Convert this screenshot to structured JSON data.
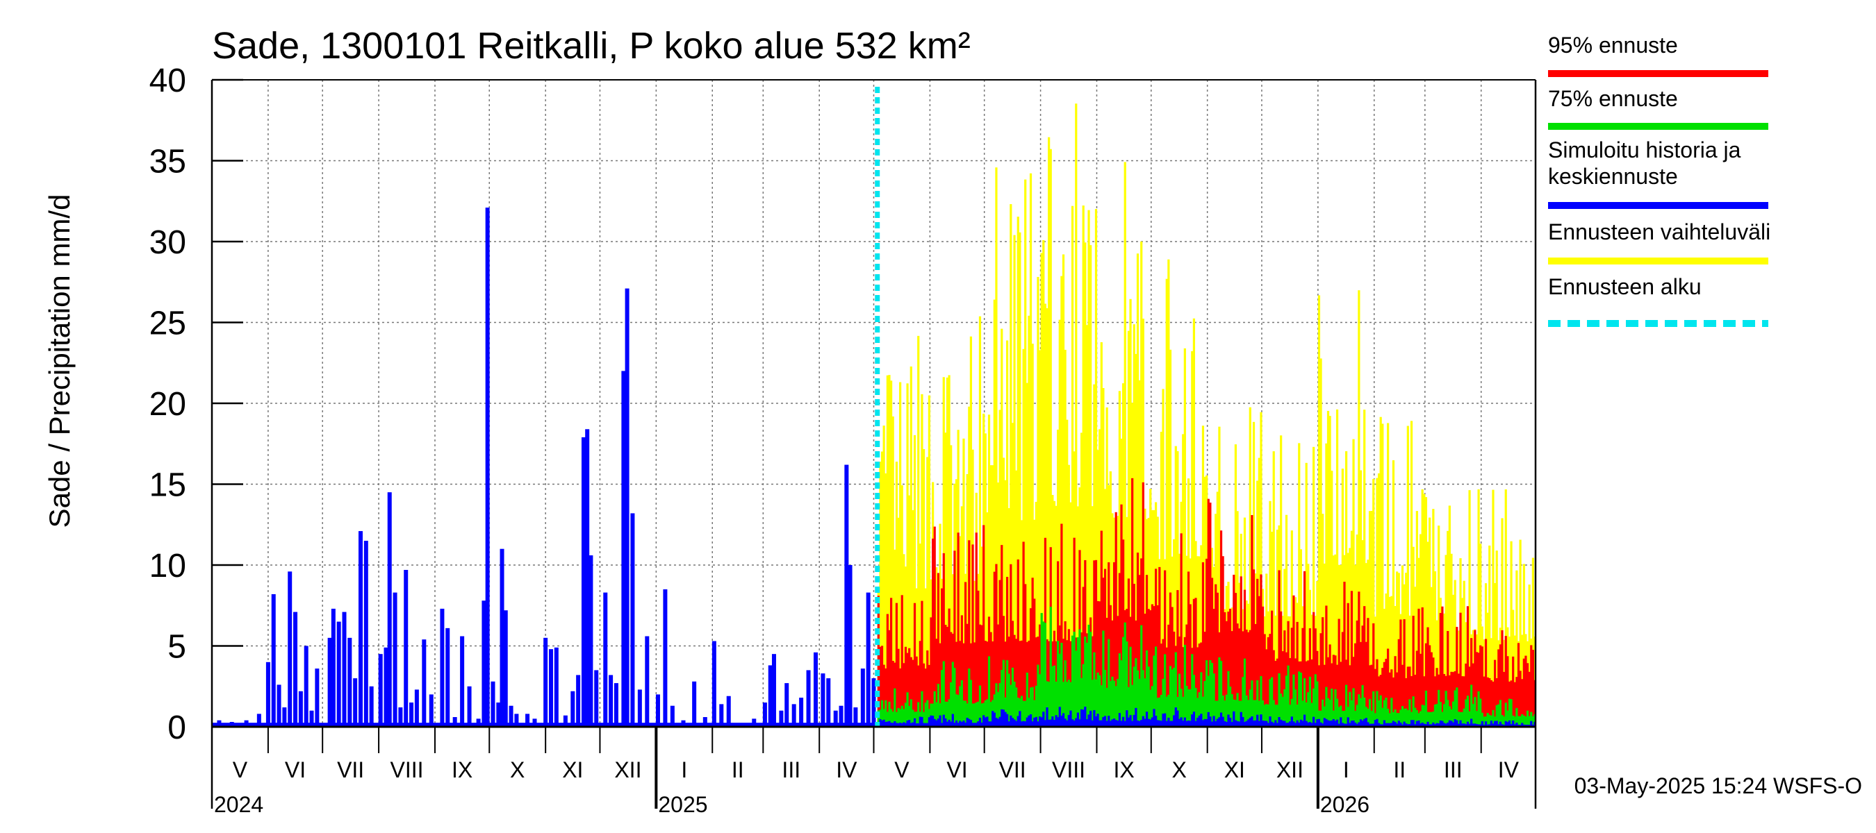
{
  "chart_data": {
    "type": "bar",
    "title": "Sade, 1300101 Reitkalli, P koko alue 532 km²",
    "ylabel": "Sade / Precipitation   mm/d",
    "ylim": [
      0,
      40
    ],
    "yticks": [
      0,
      5,
      10,
      15,
      20,
      25,
      30,
      35,
      40
    ],
    "grid": true,
    "legend_placement": "right",
    "x_start": "2024-05-01",
    "x_end": "2026-04-30",
    "forecast_start": "2025-05-03",
    "month_labels": [
      "V",
      "VI",
      "VII",
      "VIII",
      "IX",
      "X",
      "XI",
      "XII",
      "I",
      "II",
      "III",
      "IV",
      "V",
      "VI",
      "VII",
      "VIII",
      "IX",
      "X",
      "XI",
      "XII",
      "I",
      "II",
      "III",
      "IV"
    ],
    "year_labels": [
      {
        "label": "2024",
        "date": "2024-05-01"
      },
      {
        "label": "2025",
        "date": "2025-01-01"
      },
      {
        "label": "2026",
        "date": "2026-01-01"
      }
    ],
    "timestamp": "03-May-2025 15:24 WSFS-O",
    "legend": [
      {
        "label": "95% ennuste",
        "color": "#ff0000",
        "style": "solid"
      },
      {
        "label": "75% ennuste",
        "color": "#00e000",
        "style": "solid"
      },
      {
        "label": "Simuloitu historia ja keskiennuste",
        "color": "#0000ff",
        "style": "solid"
      },
      {
        "label": "Ennusteen vaihteluväli",
        "color": "#ffff00",
        "style": "solid"
      },
      {
        "label": "Ennusteen alku",
        "color": "#00e5ee",
        "style": "dashed"
      }
    ],
    "history_series": {
      "name": "Simuloitu historia ja keskiennuste",
      "points": [
        [
          "2024-05-05",
          0.4
        ],
        [
          "2024-05-12",
          0.3
        ],
        [
          "2024-05-20",
          0.4
        ],
        [
          "2024-05-27",
          0.8
        ],
        [
          "2024-06-01",
          4.0
        ],
        [
          "2024-06-04",
          8.2
        ],
        [
          "2024-06-07",
          2.6
        ],
        [
          "2024-06-10",
          1.2
        ],
        [
          "2024-06-13",
          9.6
        ],
        [
          "2024-06-16",
          7.1
        ],
        [
          "2024-06-19",
          2.2
        ],
        [
          "2024-06-22",
          5.0
        ],
        [
          "2024-06-25",
          1.0
        ],
        [
          "2024-06-28",
          3.6
        ],
        [
          "2024-07-05",
          5.5
        ],
        [
          "2024-07-07",
          7.3
        ],
        [
          "2024-07-10",
          6.5
        ],
        [
          "2024-07-13",
          7.1
        ],
        [
          "2024-07-16",
          5.5
        ],
        [
          "2024-07-19",
          3.0
        ],
        [
          "2024-07-22",
          12.1
        ],
        [
          "2024-07-25",
          11.5
        ],
        [
          "2024-07-28",
          2.5
        ],
        [
          "2024-08-02",
          4.5
        ],
        [
          "2024-08-05",
          4.9
        ],
        [
          "2024-08-07",
          14.5
        ],
        [
          "2024-08-10",
          8.3
        ],
        [
          "2024-08-13",
          1.2
        ],
        [
          "2024-08-16",
          9.7
        ],
        [
          "2024-08-19",
          1.5
        ],
        [
          "2024-08-22",
          2.3
        ],
        [
          "2024-08-26",
          5.4
        ],
        [
          "2024-08-30",
          2.0
        ],
        [
          "2024-09-05",
          7.3
        ],
        [
          "2024-09-08",
          6.1
        ],
        [
          "2024-09-12",
          0.6
        ],
        [
          "2024-09-16",
          5.6
        ],
        [
          "2024-09-20",
          2.5
        ],
        [
          "2024-09-25",
          0.5
        ],
        [
          "2024-09-28",
          7.8
        ],
        [
          "2024-09-30",
          32.1
        ],
        [
          "2024-10-03",
          2.8
        ],
        [
          "2024-10-06",
          1.5
        ],
        [
          "2024-10-08",
          11.0
        ],
        [
          "2024-10-10",
          7.2
        ],
        [
          "2024-10-13",
          1.3
        ],
        [
          "2024-10-16",
          0.8
        ],
        [
          "2024-10-22",
          0.8
        ],
        [
          "2024-10-26",
          0.5
        ],
        [
          "2024-11-01",
          5.5
        ],
        [
          "2024-11-04",
          4.8
        ],
        [
          "2024-11-07",
          4.9
        ],
        [
          "2024-11-12",
          0.7
        ],
        [
          "2024-11-16",
          2.2
        ],
        [
          "2024-11-19",
          3.2
        ],
        [
          "2024-11-22",
          17.9
        ],
        [
          "2024-11-24",
          18.4
        ],
        [
          "2024-11-26",
          10.6
        ],
        [
          "2024-11-29",
          3.5
        ],
        [
          "2024-12-04",
          8.3
        ],
        [
          "2024-12-07",
          3.2
        ],
        [
          "2024-12-10",
          2.7
        ],
        [
          "2024-12-14",
          22.0
        ],
        [
          "2024-12-16",
          27.1
        ],
        [
          "2024-12-19",
          13.2
        ],
        [
          "2024-12-23",
          2.3
        ],
        [
          "2024-12-27",
          5.6
        ],
        [
          "2025-01-02",
          2.0
        ],
        [
          "2025-01-06",
          8.5
        ],
        [
          "2025-01-10",
          1.3
        ],
        [
          "2025-01-16",
          0.4
        ],
        [
          "2025-01-22",
          2.8
        ],
        [
          "2025-01-28",
          0.6
        ],
        [
          "2025-02-02",
          5.3
        ],
        [
          "2025-02-06",
          1.4
        ],
        [
          "2025-02-10",
          1.9
        ],
        [
          "2025-02-16",
          0.2
        ],
        [
          "2025-02-24",
          0.5
        ],
        [
          "2025-03-02",
          1.5
        ],
        [
          "2025-03-05",
          3.8
        ],
        [
          "2025-03-07",
          4.5
        ],
        [
          "2025-03-11",
          1.0
        ],
        [
          "2025-03-14",
          2.7
        ],
        [
          "2025-03-18",
          1.4
        ],
        [
          "2025-03-22",
          1.8
        ],
        [
          "2025-03-26",
          3.5
        ],
        [
          "2025-03-30",
          4.6
        ],
        [
          "2025-04-03",
          3.3
        ],
        [
          "2025-04-06",
          3.0
        ],
        [
          "2025-04-10",
          1.0
        ],
        [
          "2025-04-13",
          1.3
        ],
        [
          "2025-04-16",
          16.2
        ],
        [
          "2025-04-18",
          10.0
        ],
        [
          "2025-04-21",
          1.2
        ],
        [
          "2025-04-25",
          3.6
        ],
        [
          "2025-04-28",
          8.3
        ],
        [
          "2025-05-01",
          3.0
        ]
      ]
    },
    "forecast_monthly": {
      "months": [
        "2025-05",
        "2025-06",
        "2025-07",
        "2025-08",
        "2025-09",
        "2025-10",
        "2025-11",
        "2025-12",
        "2026-01",
        "2026-02",
        "2026-03",
        "2026-04"
      ],
      "max": [
        24.3,
        25.6,
        36.5,
        38.9,
        36.6,
        29.6,
        20.6,
        19.5,
        28.6,
        19.4,
        16.3,
        15.1
      ],
      "p95": [
        9.0,
        12.9,
        13.1,
        13.2,
        16.4,
        12.2,
        14.6,
        10.1,
        9.5,
        7.5,
        7.8,
        6.9
      ],
      "p75": [
        2.6,
        4.1,
        4.4,
        7.9,
        6.5,
        5.1,
        4.6,
        3.9,
        2.8,
        2.4,
        2.6,
        1.8
      ],
      "mean": [
        0.7,
        0.8,
        1.1,
        1.3,
        1.2,
        1.2,
        1.0,
        0.8,
        0.6,
        0.5,
        0.5,
        0.4
      ]
    }
  }
}
